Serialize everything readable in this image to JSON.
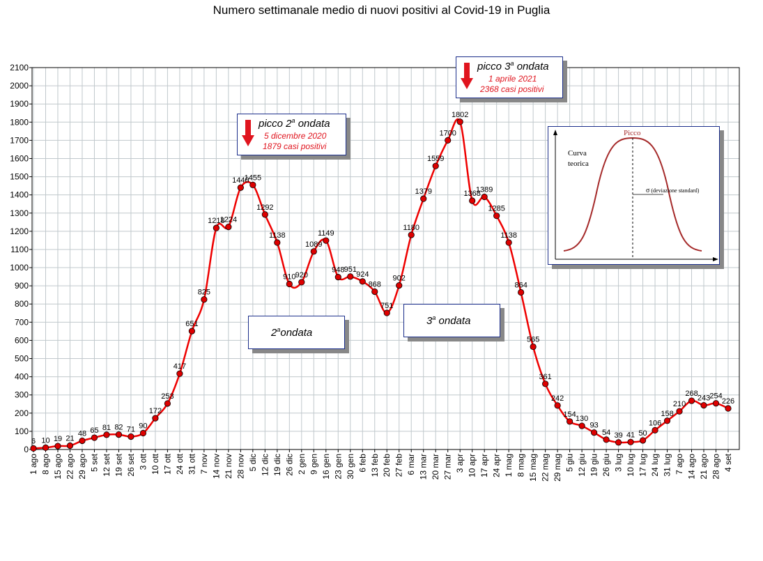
{
  "chart_data": {
    "type": "line",
    "title": "Numero settimanale medio di nuovi positivi al Covid-19 in Puglia",
    "xlabel": "",
    "ylabel": "",
    "ylim": [
      0,
      2100
    ],
    "yticks": [
      0,
      100,
      200,
      300,
      400,
      500,
      600,
      700,
      800,
      900,
      1000,
      1100,
      1200,
      1300,
      1400,
      1500,
      1600,
      1700,
      1800,
      1900,
      2000,
      2100
    ],
    "grid": true,
    "categories": [
      "1 ago",
      "8 ago",
      "15 ago",
      "22 ago",
      "29 ago",
      "5 set",
      "12 set",
      "19 set",
      "26 set",
      "3 ott",
      "10 ott",
      "17 ott",
      "24 ott",
      "31 ott",
      "7 nov",
      "14 nov",
      "21 nov",
      "28 nov",
      "5 dic",
      "12 dic",
      "19 dic",
      "26 dic",
      "2 gen",
      "9 gen",
      "16 gen",
      "23 gen",
      "30 gen",
      "6 feb",
      "13 feb",
      "20 feb",
      "27 feb",
      "6 mar",
      "13 mar",
      "20 mar",
      "27 mar",
      "3 apr",
      "10 apr",
      "17 apr",
      "24 apr",
      "1 mag",
      "8 mag",
      "15 mag",
      "22 mag",
      "29 mag",
      "5 giu",
      "12 giu",
      "19 giu",
      "26 giu",
      "3 lug",
      "10 lug",
      "17 lug",
      "24 lug",
      "31 lug",
      "7 ago",
      "14 ago",
      "21 ago",
      "28 ago",
      "4 set"
    ],
    "series": [
      {
        "values": [
          6,
          10,
          19,
          21,
          48,
          65,
          81,
          82,
          71,
          90,
          172,
          253,
          417,
          651,
          825,
          1218,
          1224,
          1440,
          1455,
          1292,
          1138,
          910,
          920,
          1089,
          1149,
          948,
          951,
          924,
          868,
          751,
          902,
          1180,
          1379,
          1559,
          1700,
          1802,
          1368,
          1389,
          1285,
          1138,
          864,
          565,
          361,
          242,
          154,
          130,
          93,
          54,
          39,
          41,
          50,
          106,
          158,
          210,
          268,
          243,
          254,
          226
        ],
        "color": "#ee0000",
        "marker_fill": "#dd0000"
      }
    ],
    "annotations": {
      "wave2_peak": {
        "title_prefix": "picco 2",
        "sup": "a",
        "title_suffix": " ondata",
        "date": "5 dicembre 2020",
        "cases": "1879 casi positivi"
      },
      "wave3_peak": {
        "title_prefix": "picco 3",
        "sup": "a",
        "title_suffix": " ondata",
        "date": "1 aprile 2021",
        "cases": "2368 casi positivi"
      },
      "wave2_label": {
        "num": "2",
        "sup": "a",
        "text": "ondata"
      },
      "wave3_label": {
        "num": "3",
        "sup": "a",
        "text": " ondata"
      },
      "theory": {
        "peak": "Picco",
        "curve": "Curva",
        "curve2": "teorica",
        "sigma": "σ",
        "sigma_text": "(deviazione standard)"
      }
    },
    "colors": {
      "line": "#ee0000",
      "marker": "#dd0000",
      "grid": "#c0c8cc",
      "box_border": "#1a2d8a",
      "annotation_text": "#e0141e"
    }
  }
}
